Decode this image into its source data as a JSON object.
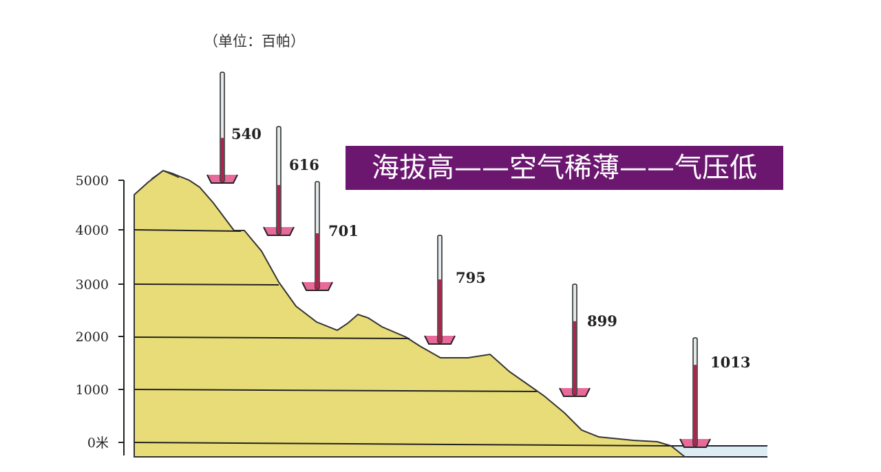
{
  "unit_label": "（单位：百帕）",
  "banner": {
    "text": "海拔高——空气稀薄——气压低",
    "color": "#6b1770"
  },
  "axis": {
    "ticks": [
      "5000",
      "4000",
      "3000",
      "2000",
      "1000",
      "0米"
    ]
  },
  "barometers": [
    {
      "altitude_m": 4500,
      "pressure": "540"
    },
    {
      "altitude_m": 3500,
      "pressure": "616"
    },
    {
      "altitude_m": 2700,
      "pressure": "701"
    },
    {
      "altitude_m": 2000,
      "pressure": "795"
    },
    {
      "altitude_m": 1000,
      "pressure": "899"
    },
    {
      "altitude_m": 0,
      "pressure": "1013"
    }
  ],
  "colors": {
    "mountain": "#e8dc78",
    "mercury": "#b0234f",
    "water": "#dcecf2"
  }
}
